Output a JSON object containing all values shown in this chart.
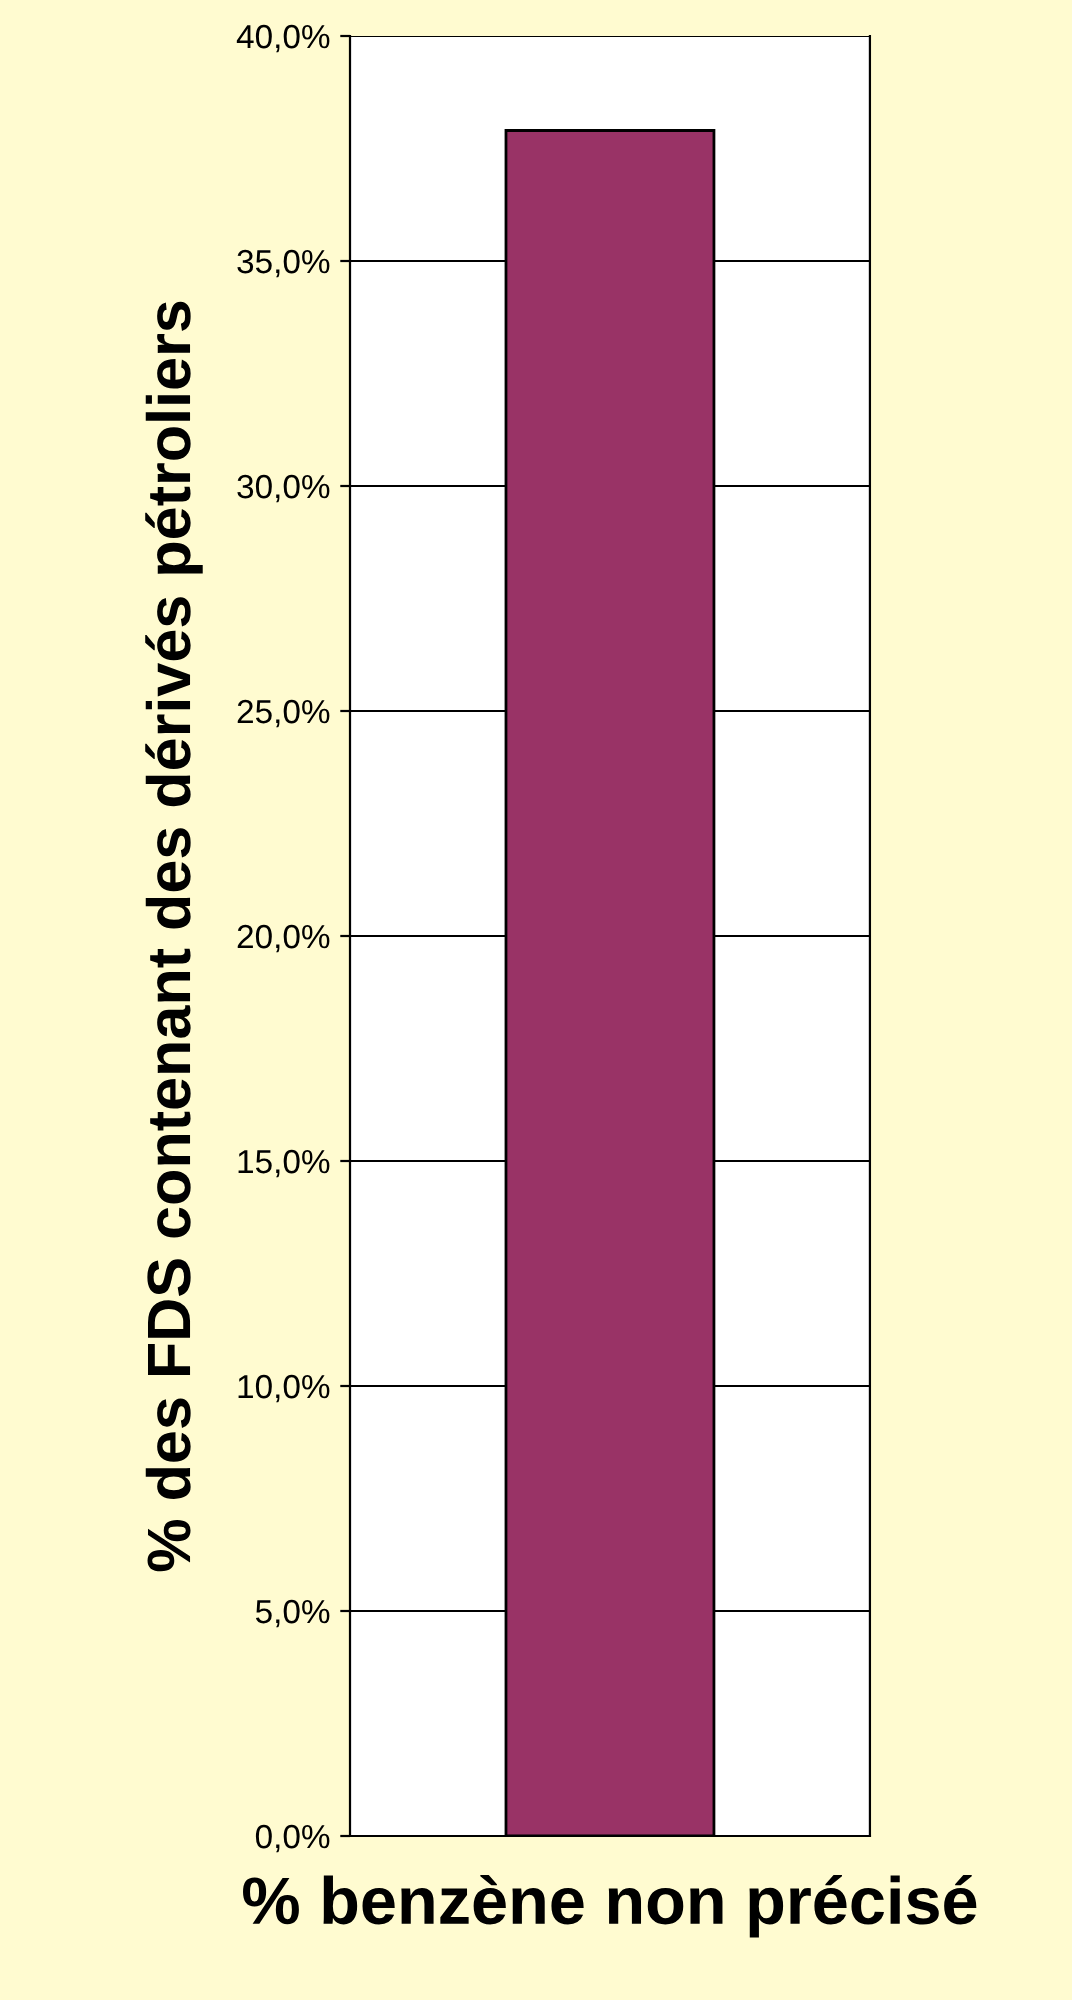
{
  "chart_data": {
    "type": "bar",
    "ylabel": "% des FDS contenant des dérivés pétroliers",
    "categories": [
      "% benzène non précisé"
    ],
    "series": [
      {
        "color": "#993366",
        "values": [
          37.9
        ]
      }
    ],
    "ylim": [
      0,
      40
    ],
    "yticks": [
      {
        "value": 0,
        "label": "0,0%"
      },
      {
        "value": 5,
        "label": "5,0%"
      },
      {
        "value": 10,
        "label": "10,0%"
      },
      {
        "value": 15,
        "label": "15,0%"
      },
      {
        "value": 20,
        "label": "20,0%"
      },
      {
        "value": 25,
        "label": "25,0%"
      },
      {
        "value": 30,
        "label": "30,0%"
      },
      {
        "value": 35,
        "label": "35,0%"
      },
      {
        "value": 40,
        "label": "40,0%"
      }
    ],
    "grid": "y"
  }
}
